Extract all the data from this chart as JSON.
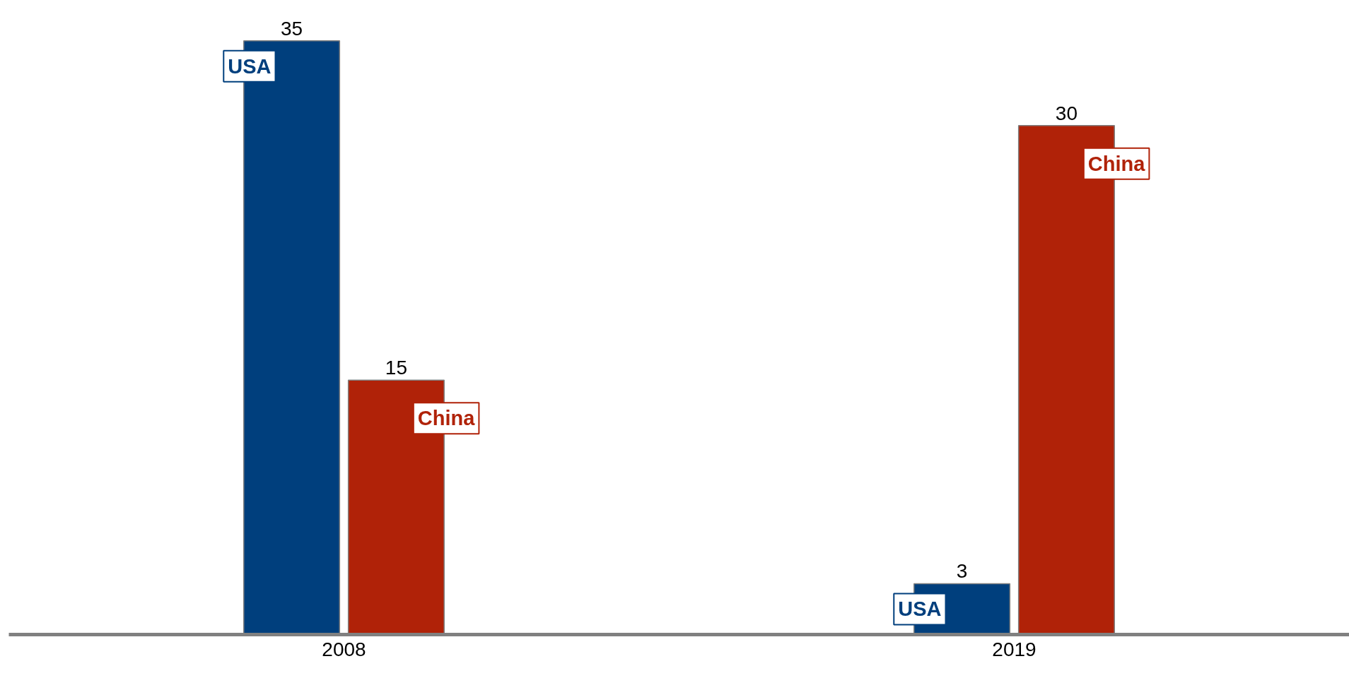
{
  "chart_data": {
    "type": "bar",
    "categories": [
      "2008",
      "2019"
    ],
    "series": [
      {
        "name": "USA",
        "color": "#003f7d",
        "values": [
          35,
          3
        ]
      },
      {
        "name": "China",
        "color": "#b02208",
        "values": [
          15,
          30
        ]
      }
    ],
    "data_labels": true
  }
}
